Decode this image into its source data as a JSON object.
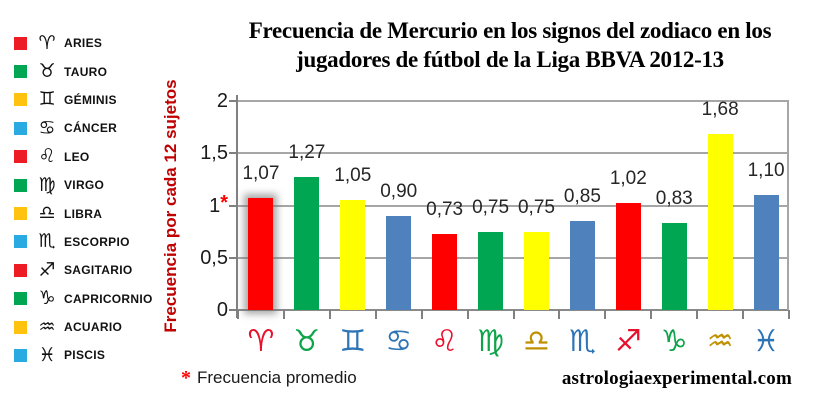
{
  "title": {
    "line1": "Frecuencia de Mercurio en los signos del zodiaco en los",
    "line2": "jugadores de fútbol de la Liga BBVA 2012-13"
  },
  "legend": {
    "items": [
      {
        "name": "ARIES",
        "symbol": "♈",
        "color": "#ED1C24"
      },
      {
        "name": "TAURO",
        "symbol": "♉",
        "color": "#00A651"
      },
      {
        "name": "GÉMINIS",
        "symbol": "♊",
        "color": "#FFC20E"
      },
      {
        "name": "CÁNCER",
        "symbol": "♋",
        "color": "#29ABE2"
      },
      {
        "name": "LEO",
        "symbol": "♌",
        "color": "#ED1C24"
      },
      {
        "name": "VIRGO",
        "symbol": "♍",
        "color": "#00A651"
      },
      {
        "name": "LIBRA",
        "symbol": "♎",
        "color": "#FFC20E"
      },
      {
        "name": "ESCORPIO",
        "symbol": "♏",
        "color": "#29ABE2"
      },
      {
        "name": "SAGITARIO",
        "symbol": "♐",
        "color": "#ED1C24"
      },
      {
        "name": "CAPRICORNIO",
        "symbol": "♑",
        "color": "#00A651"
      },
      {
        "name": "ACUARIO",
        "symbol": "♒",
        "color": "#FFC20E"
      },
      {
        "name": "PISCIS",
        "symbol": "♓",
        "color": "#29ABE2"
      }
    ]
  },
  "chart_data": {
    "type": "bar",
    "title": "Frecuencia de Mercurio en los signos del zodiaco en los jugadores de fútbol de la Liga BBVA 2012-13",
    "xlabel": "",
    "ylabel": "Frecuencia por cada 12 sujetos",
    "ylim": [
      0,
      2
    ],
    "grid": true,
    "legend_position": "left",
    "categories": [
      "Aries",
      "Tauro",
      "Géminis",
      "Cáncer",
      "Leo",
      "Virgo",
      "Libra",
      "Escorpio",
      "Sagitario",
      "Capricornio",
      "Acuario",
      "Piscis"
    ],
    "symbols": [
      "♈",
      "♉",
      "♊",
      "♋",
      "♌",
      "♍",
      "♎",
      "♏",
      "♐",
      "♑",
      "♒",
      "♓"
    ],
    "values": [
      1.07,
      1.27,
      1.05,
      0.9,
      0.73,
      0.75,
      0.75,
      0.85,
      1.02,
      0.83,
      1.68,
      1.1
    ],
    "value_labels": [
      "1,07",
      "1,27",
      "1,05",
      "0,90",
      "0,73",
      "0,75",
      "0,75",
      "0,85",
      "1,02",
      "0,83",
      "1,68",
      "1,10"
    ],
    "bar_colors": [
      "#FE0000",
      "#00A651",
      "#FFFF00",
      "#4F81BD",
      "#FE0000",
      "#00A651",
      "#FFFF00",
      "#4F81BD",
      "#FE0000",
      "#00A651",
      "#FFFF00",
      "#4F81BD"
    ],
    "symbol_colors": [
      "#E8112D",
      "#0FA44A",
      "#2E75B6",
      "#2E75B6",
      "#E8112D",
      "#0FA44A",
      "#BF9000",
      "#2E75B6",
      "#E8112D",
      "#0FA44A",
      "#BF9000",
      "#2E75B6"
    ],
    "highlighted_index": 0,
    "yticks_top_to_bottom": [
      {
        "label": "2",
        "star": ""
      },
      {
        "label": "1,5",
        "star": ""
      },
      {
        "label": "1",
        "star": "*"
      },
      {
        "label": "0,5",
        "star": ""
      },
      {
        "label": "0",
        "star": ""
      }
    ]
  },
  "footnote": {
    "star": "*",
    "text": "Frecuencia promedio"
  },
  "website": "astrologiaexperimental.com",
  "colors": {
    "axis_gray": "#A6A6A6",
    "ylabel_red": "#C00000",
    "asterisk_red": "#FF0000",
    "data_label": "#262626"
  }
}
